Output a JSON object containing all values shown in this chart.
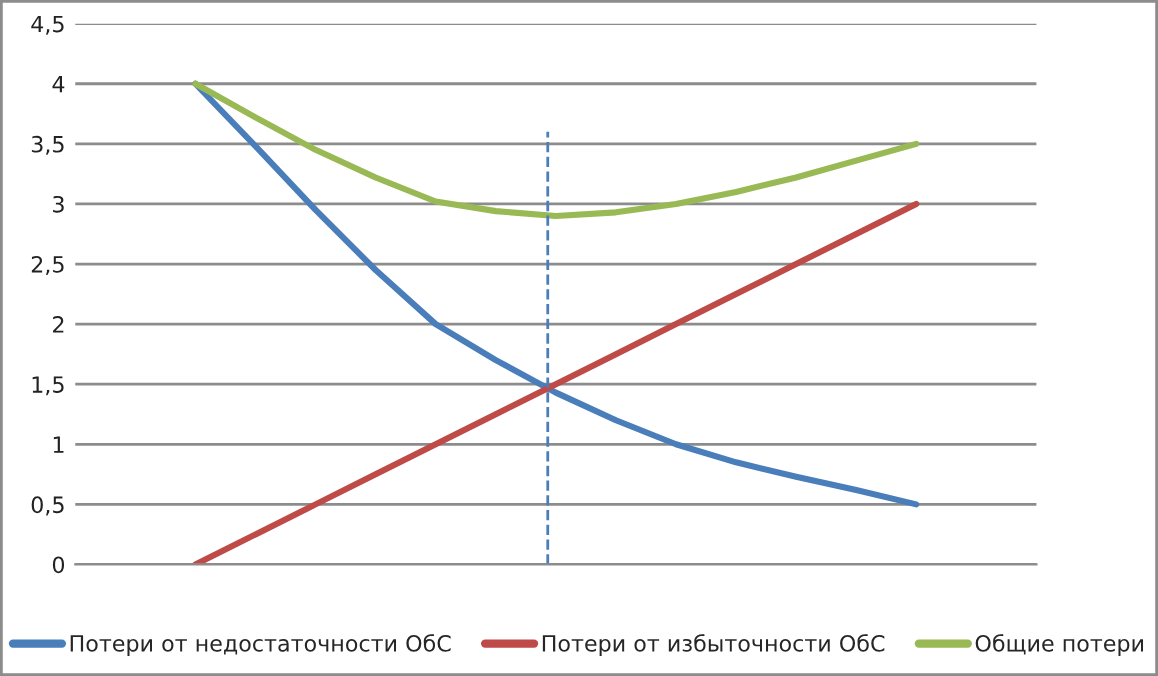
{
  "chart_data": {
    "type": "line",
    "categories": [
      null,
      null,
      null,
      null,
      null,
      null,
      null,
      null,
      null,
      null,
      null,
      null,
      null
    ],
    "ylim": [
      0,
      4.5
    ],
    "yticks": [
      {
        "value": 0,
        "label": "0"
      },
      {
        "value": 0.5,
        "label": "0,5"
      },
      {
        "value": 1,
        "label": "1"
      },
      {
        "value": 1.5,
        "label": "1,5"
      },
      {
        "value": 2,
        "label": "2"
      },
      {
        "value": 2.5,
        "label": "2,5"
      },
      {
        "value": 3,
        "label": "3"
      },
      {
        "value": 3.5,
        "label": "3,5"
      },
      {
        "value": 4,
        "label": "4"
      },
      {
        "value": 4.5,
        "label": "4,5"
      }
    ],
    "series": [
      {
        "name": "Потери от недостаточности ОбС",
        "color": "#4a7ebb",
        "values": [
          4,
          3.48,
          2.95,
          2.45,
          2.0,
          1.7,
          1.43,
          1.2,
          1.0,
          0.85,
          0.73,
          0.62,
          0.5
        ]
      },
      {
        "name": "Потери от избыточности ОбС",
        "color": "#be4b48",
        "values": [
          0,
          0.25,
          0.5,
          0.75,
          1,
          1.25,
          1.5,
          1.75,
          2,
          2.25,
          2.5,
          2.75,
          3
        ]
      },
      {
        "name": "Общие потери",
        "color": "#98b954",
        "values": [
          4,
          3.72,
          3.45,
          3.22,
          3.02,
          2.94,
          2.9,
          2.93,
          3.0,
          3.1,
          3.22,
          3.36,
          3.5
        ]
      }
    ],
    "grid": "y",
    "legend": "bottom",
    "marker": "none",
    "line_style": "solid"
  }
}
